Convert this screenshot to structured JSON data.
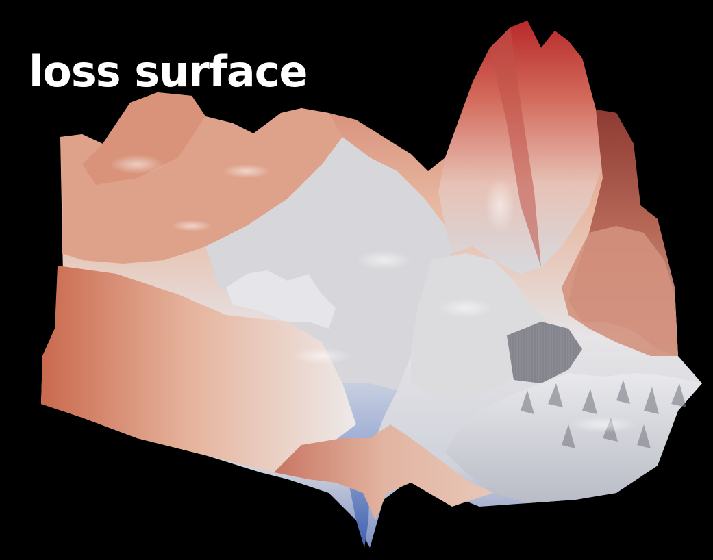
{
  "title": "loss surface",
  "colors": {
    "background": "#000000",
    "high_loss": "#c83a32",
    "mid_loss": "#d9d9dc",
    "low_loss": "#4f6fb8",
    "title_text": "#ffffff"
  }
}
